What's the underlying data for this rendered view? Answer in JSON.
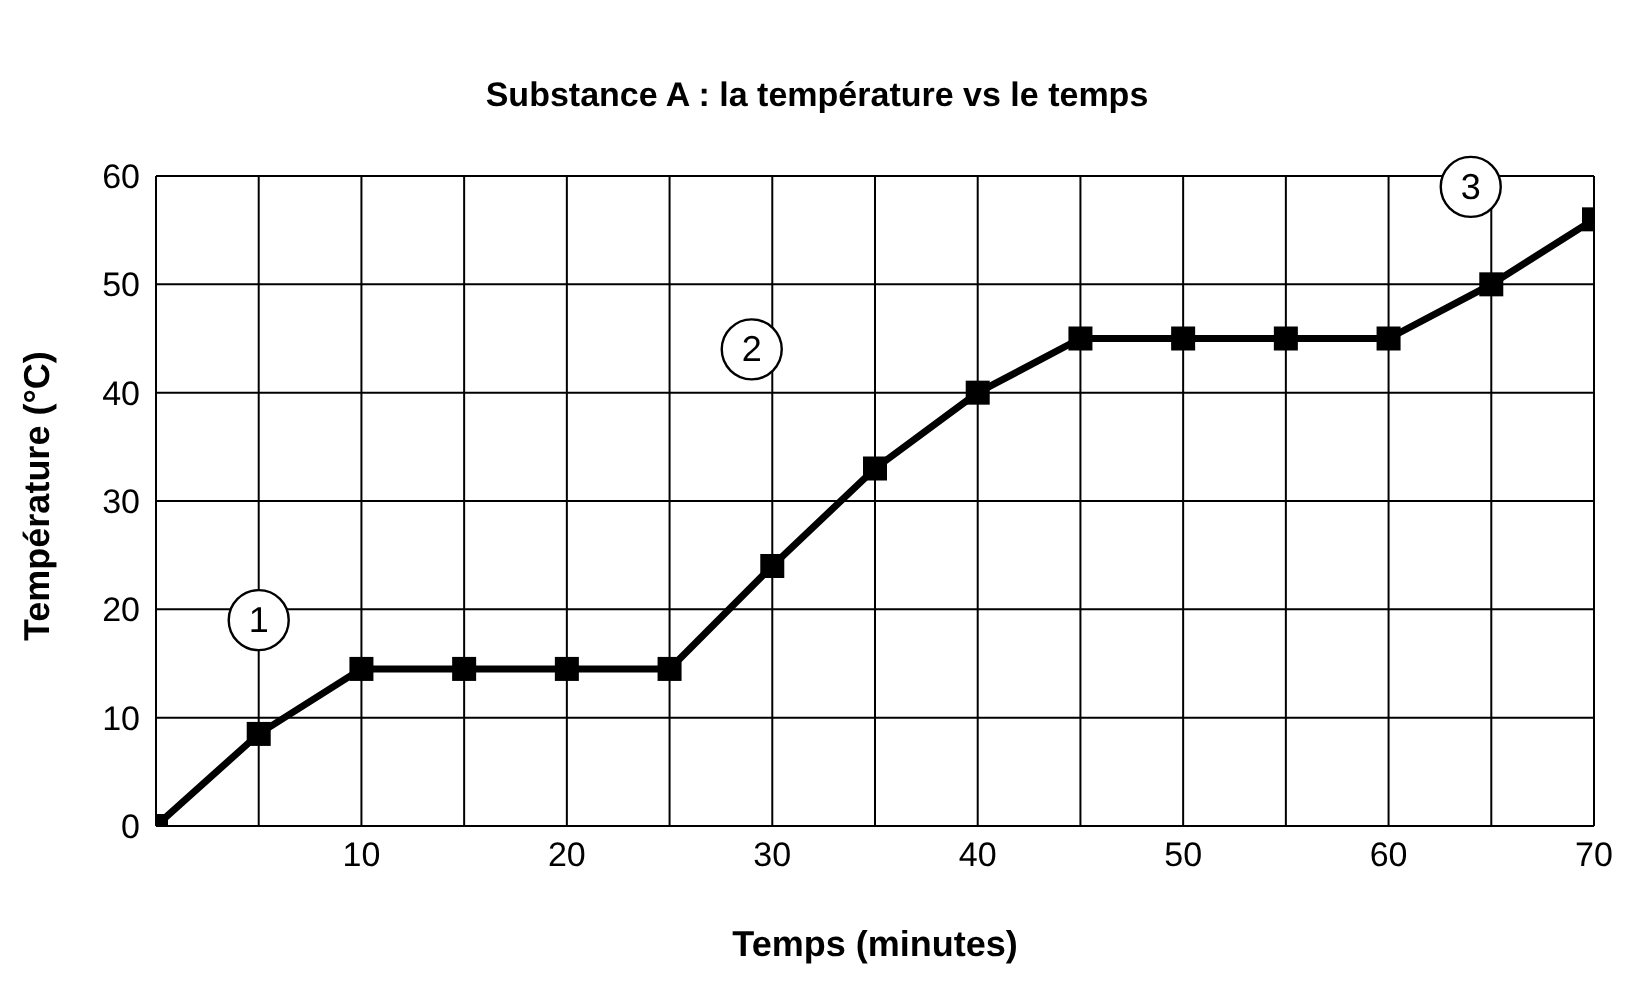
{
  "chart_data": {
    "type": "line",
    "title": "Substance A : la température vs le temps",
    "xlabel": "Temps (minutes)",
    "ylabel": "Température (°C)",
    "x": [
      0,
      5,
      10,
      15,
      20,
      25,
      30,
      35,
      40,
      45,
      50,
      55,
      60,
      65,
      70
    ],
    "series": [
      {
        "color": "#000000",
        "values": [
          0,
          8.5,
          14.5,
          14.5,
          14.5,
          14.5,
          24,
          33,
          40,
          45,
          45,
          45,
          45,
          50,
          56
        ]
      }
    ],
    "xlim": [
      0,
      70
    ],
    "xticks": [
      {
        "value": 0,
        "label": null
      },
      {
        "value": 5,
        "label": null
      },
      10,
      {
        "value": 15,
        "label": null
      },
      20,
      {
        "value": 25,
        "label": null
      },
      30,
      {
        "value": 35,
        "label": null
      },
      40,
      {
        "value": 45,
        "label": null
      },
      50,
      {
        "value": 55,
        "label": null
      },
      60,
      {
        "value": 65,
        "label": null
      },
      70
    ],
    "ylim": [
      0,
      60
    ],
    "yticks": [
      0,
      10,
      20,
      30,
      40,
      50,
      60
    ],
    "grid": true,
    "legend": false,
    "marker": "square",
    "line_style": "solid",
    "annotations": [
      {
        "text": "1",
        "x": 5,
        "y": 19
      },
      {
        "text": "2",
        "x": 29,
        "y": 44
      },
      {
        "text": "3",
        "x": 64,
        "y": 59
      }
    ]
  }
}
